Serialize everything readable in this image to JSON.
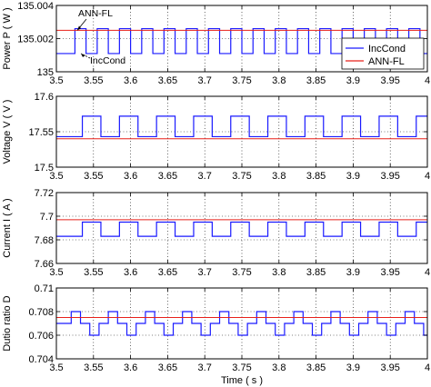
{
  "chart_data": [
    {
      "type": "line",
      "ylabel": "Power P ( W )",
      "xlim": [
        3.5,
        4.0
      ],
      "ylim": [
        135,
        135.004
      ],
      "yticks": [
        "135",
        "135.002",
        "135.004"
      ],
      "xticks": [
        "3.5",
        "3.55",
        "3.6",
        "3.65",
        "3.7",
        "3.75",
        "3.8",
        "3.85",
        "3.9",
        "3.95",
        "4"
      ],
      "grid": true,
      "legend": {
        "placement": "right",
        "entries": [
          "IncCond",
          "ANN-FL"
        ]
      },
      "annotations": [
        "ANN-FL",
        "IncCond"
      ],
      "series": [
        {
          "name": "IncCond",
          "color": "#1a1aff",
          "form": "square-wave",
          "period": 0.03,
          "low": 135.0011,
          "high": 135.0026,
          "first_edge": 3.525
        },
        {
          "name": "ANN-FL",
          "color": "#e8211a",
          "form": "constant",
          "value": 135.0025
        }
      ]
    },
    {
      "type": "line",
      "ylabel": "Voltage V ( V )",
      "xlim": [
        3.5,
        4.0
      ],
      "ylim": [
        17.5,
        17.6
      ],
      "yticks": [
        "17.5",
        "17.55",
        "17.6"
      ],
      "xticks": [
        "3.5",
        "3.55",
        "3.6",
        "3.65",
        "3.7",
        "3.75",
        "3.8",
        "3.85",
        "3.9",
        "3.95",
        "4"
      ],
      "grid": true,
      "series": [
        {
          "name": "IncCond",
          "color": "#1a1aff",
          "form": "square-wave",
          "period": 0.05,
          "low": 17.543,
          "high": 17.572,
          "first_edge": 3.535
        },
        {
          "name": "ANN-FL",
          "color": "#e8211a",
          "form": "constant",
          "value": 17.54
        }
      ]
    },
    {
      "type": "line",
      "ylabel": "Current I ( A )",
      "xlim": [
        3.5,
        4.0
      ],
      "ylim": [
        7.66,
        7.72
      ],
      "yticks": [
        "7.66",
        "7.68",
        "7.7",
        "7.72"
      ],
      "xticks": [
        "3.5",
        "3.55",
        "3.6",
        "3.65",
        "3.7",
        "3.75",
        "3.8",
        "3.85",
        "3.9",
        "3.95",
        "4"
      ],
      "grid": true,
      "series": [
        {
          "name": "IncCond",
          "color": "#1a1aff",
          "form": "square-wave",
          "period": 0.05,
          "low": 7.683,
          "high": 7.695,
          "first_edge": 3.535
        },
        {
          "name": "ANN-FL",
          "color": "#e8211a",
          "form": "constant",
          "value": 7.697
        }
      ]
    },
    {
      "type": "line",
      "ylabel": "Dutio ratio D",
      "xlabel": "Time ( s )",
      "xlim": [
        3.5,
        4.0
      ],
      "ylim": [
        0.704,
        0.71
      ],
      "yticks": [
        "0.704",
        "0.706",
        "0.708",
        "0.71"
      ],
      "xticks": [
        "3.5",
        "3.55",
        "3.6",
        "3.65",
        "3.7",
        "3.75",
        "3.8",
        "3.85",
        "3.9",
        "3.95",
        "4"
      ],
      "grid": true,
      "series": [
        {
          "name": "IncCond",
          "color": "#1a1aff",
          "form": "staircase",
          "period": 0.05,
          "levels": [
            0.706,
            0.707,
            0.708
          ],
          "first_edge": 3.52
        },
        {
          "name": "ANN-FL",
          "color": "#e8211a",
          "form": "constant",
          "value": 0.7075
        }
      ]
    }
  ]
}
